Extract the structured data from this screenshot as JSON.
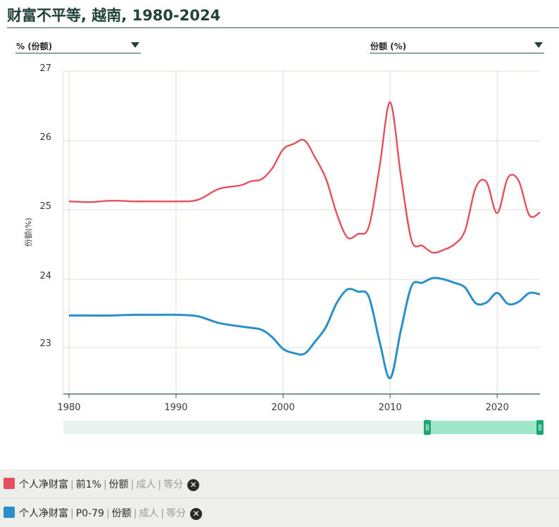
{
  "header": {
    "title": "财富不平等, 越南, 1980-2024"
  },
  "selectors": {
    "left": {
      "value": "% (份额)"
    },
    "right": {
      "value": "份额 (%)"
    }
  },
  "legend": {
    "items": [
      {
        "color": "#e5505e",
        "parts": [
          "个人净财富",
          "前1%",
          "份额"
        ],
        "muted": [
          "成人",
          "等分"
        ]
      },
      {
        "color": "#2b8fc9",
        "parts": [
          "个人净财富",
          "P0-79",
          "份额"
        ],
        "muted": [
          "成人",
          "等分"
        ]
      }
    ]
  },
  "colors": {
    "grid": "#dcdcd6",
    "axis": "#2f5a4f",
    "scroller_bg": "#e8f2ee",
    "scroller_sel": "#9fe6c9",
    "handle": "#1aa572"
  },
  "chart_data": {
    "type": "line",
    "ylabel": "份额(%)",
    "ytick_labels": [
      "27",
      "26",
      "25",
      "24",
      "23"
    ],
    "xtick_labels": [
      "1980",
      "1990",
      "2000",
      "2010",
      "2020"
    ],
    "x_range": [
      1980,
      2024
    ],
    "series_top": {
      "x": [
        1980,
        1982,
        1984,
        1986,
        1988,
        1990,
        1992,
        1994,
        1996,
        1997,
        1998,
        1999,
        2000,
        2001,
        2002,
        2003,
        2004,
        2005,
        2006,
        2007,
        2008,
        2009,
        2010,
        2011,
        2012,
        2013,
        2014,
        2015,
        2016,
        2017,
        2018,
        2019,
        2020,
        2021,
        2022,
        2023,
        2024
      ],
      "y": [
        25.12,
        25.11,
        25.13,
        25.12,
        25.12,
        25.12,
        25.14,
        25.3,
        25.35,
        25.41,
        25.44,
        25.6,
        25.87,
        25.95,
        26.0,
        25.75,
        25.45,
        24.95,
        24.6,
        24.65,
        24.75,
        25.6,
        26.55,
        25.5,
        24.56,
        24.48,
        24.38,
        24.42,
        24.5,
        24.7,
        25.32,
        25.4,
        24.95,
        25.46,
        25.42,
        24.92,
        24.96
      ]
    },
    "series_bottom": {
      "x": [
        1980,
        1982,
        1984,
        1986,
        1988,
        1990,
        1992,
        1994,
        1996,
        1997,
        1998,
        1999,
        2000,
        2001,
        2002,
        2003,
        2004,
        2005,
        2006,
        2007,
        2008,
        2009,
        2010,
        2011,
        2012,
        2013,
        2014,
        2015,
        2016,
        2017,
        2018,
        2019,
        2020,
        2021,
        2022,
        2023,
        2024
      ],
      "y": [
        23.47,
        23.47,
        23.47,
        23.48,
        23.48,
        23.48,
        23.46,
        23.36,
        23.31,
        23.29,
        23.26,
        23.15,
        22.98,
        22.92,
        22.91,
        23.09,
        23.3,
        23.65,
        23.85,
        23.82,
        23.75,
        23.1,
        22.55,
        23.25,
        23.9,
        23.95,
        24.02,
        24.0,
        23.95,
        23.88,
        23.65,
        23.66,
        23.8,
        23.64,
        23.67,
        23.8,
        23.78
      ]
    },
    "scroller": {
      "selected_range": [
        2014,
        2024
      ]
    }
  }
}
